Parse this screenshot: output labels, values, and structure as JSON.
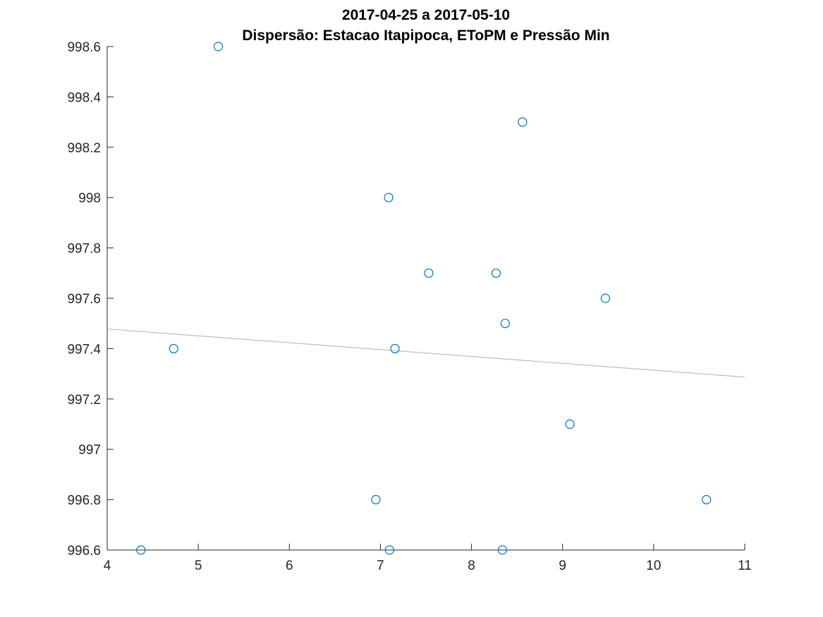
{
  "chart_data": {
    "type": "scatter",
    "title": "2017-04-25 a 2017-05-10",
    "subtitle": "Dispersão: Estacao Itapipoca, EToPM e Pressão Min",
    "xlabel": "",
    "ylabel": "",
    "xlim": [
      4,
      11
    ],
    "ylim": [
      996.6,
      998.6
    ],
    "xticks": [
      "4",
      "5",
      "6",
      "7",
      "8",
      "9",
      "10",
      "11"
    ],
    "yticks": [
      "996.6",
      "996.8",
      "997",
      "997.2",
      "997.4",
      "997.6",
      "997.8",
      "998",
      "998.2",
      "998.4",
      "998.6"
    ],
    "grid": false,
    "legend": "none",
    "marker_color": "#0072BD",
    "trend_color": "#BDBDBD",
    "series": [
      {
        "x": [
          5.22,
          8.56,
          7.09,
          7.53,
          8.27,
          9.47,
          8.37,
          4.73,
          7.16,
          9.08,
          6.95,
          10.58,
          4.37,
          7.1,
          8.34
        ],
        "y": [
          998.6,
          998.3,
          998.0,
          997.7,
          997.7,
          997.6,
          997.5,
          997.4,
          997.4,
          997.1,
          996.8,
          996.8,
          996.6,
          996.6,
          996.6
        ]
      }
    ],
    "trend_line": {
      "x": [
        4,
        11
      ],
      "y": [
        997.478,
        997.287
      ]
    }
  }
}
